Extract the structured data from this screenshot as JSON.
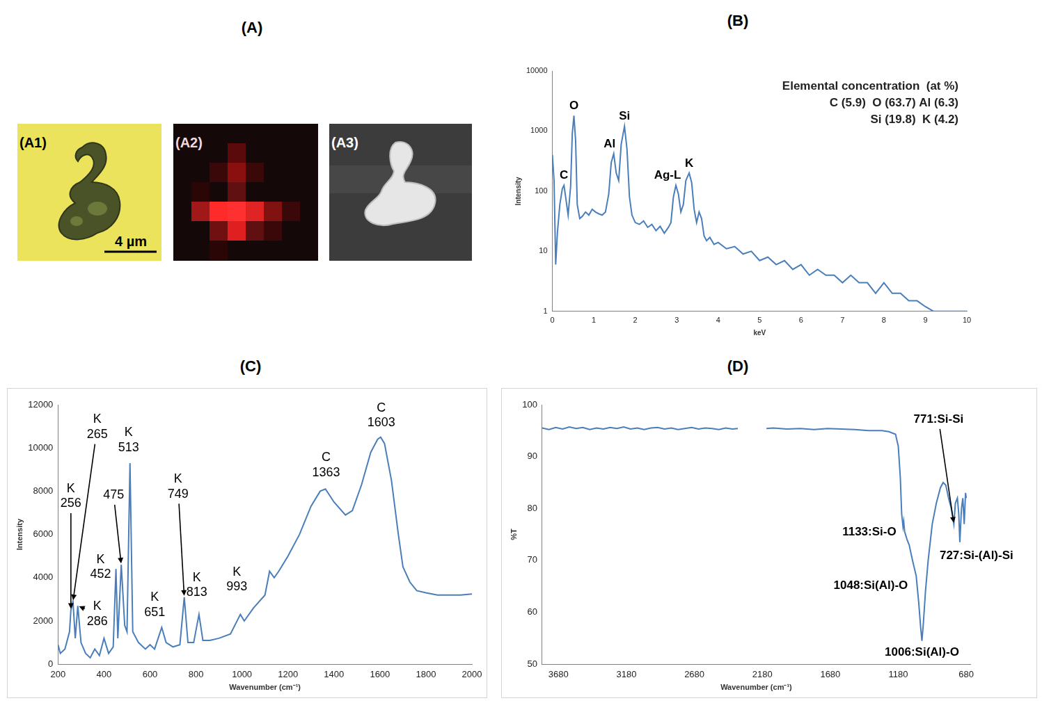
{
  "images": {
    "panel": "(A)",
    "items": [
      {
        "label": "(A1)",
        "scale_bar": "4 µm"
      },
      {
        "label": "(A2)"
      },
      {
        "label": "(A3)"
      }
    ]
  },
  "chart_data": [
    {
      "panel": "(B)",
      "type": "line",
      "x_label": "keV",
      "y_label": "Intensity",
      "log": "y",
      "grid": false,
      "color": "#4a7ebb",
      "xlim": [
        0,
        10
      ],
      "xticks": [
        0,
        1,
        2,
        3,
        4,
        5,
        6,
        7,
        8,
        9,
        10
      ],
      "ylim": [
        1,
        10000
      ],
      "yticks": [
        1,
        10,
        100,
        1000,
        10000
      ],
      "x": [
        0,
        0.04,
        0.08,
        0.12,
        0.18,
        0.24,
        0.28,
        0.32,
        0.38,
        0.44,
        0.48,
        0.52,
        0.56,
        0.6,
        0.66,
        0.72,
        0.8,
        0.88,
        0.96,
        1.04,
        1.12,
        1.2,
        1.28,
        1.36,
        1.42,
        1.48,
        1.54,
        1.6,
        1.66,
        1.74,
        1.8,
        1.86,
        1.92,
        2.0,
        2.1,
        2.2,
        2.3,
        2.4,
        2.5,
        2.6,
        2.7,
        2.8,
        2.86,
        2.92,
        2.98,
        3.04,
        3.1,
        3.16,
        3.22,
        3.3,
        3.36,
        3.42,
        3.48,
        3.54,
        3.6,
        3.66,
        3.72,
        3.8,
        3.9,
        4.0,
        4.2,
        4.4,
        4.6,
        4.8,
        5.0,
        5.2,
        5.4,
        5.6,
        5.8,
        6.0,
        6.2,
        6.4,
        6.6,
        6.8,
        7.0,
        7.2,
        7.4,
        7.6,
        7.8,
        8.0,
        8.2,
        8.4,
        8.6,
        8.8,
        9.0,
        9.2,
        9.4,
        9.6,
        9.8,
        10.0
      ],
      "values": [
        400,
        150,
        6,
        20,
        60,
        110,
        125,
        80,
        40,
        120,
        900,
        1800,
        700,
        60,
        35,
        38,
        45,
        40,
        50,
        45,
        42,
        40,
        45,
        90,
        300,
        420,
        200,
        150,
        600,
        1200,
        500,
        80,
        40,
        30,
        28,
        32,
        25,
        28,
        22,
        26,
        20,
        25,
        30,
        80,
        125,
        90,
        45,
        60,
        150,
        200,
        140,
        50,
        30,
        45,
        35,
        18,
        15,
        17,
        13,
        14,
        11,
        12,
        9,
        10,
        7,
        8,
        6,
        7,
        5,
        6,
        4,
        5,
        4,
        4,
        3,
        4,
        3,
        3,
        2,
        3,
        2,
        2,
        1.5,
        1.5,
        1.2,
        1,
        1,
        1,
        1,
        1
      ],
      "annotations": [
        {
          "text": "C",
          "x": 0.28
        },
        {
          "text": "O",
          "x": 0.52
        },
        {
          "text": "Al",
          "x": 1.48
        },
        {
          "text": "Si",
          "x": 1.74
        },
        {
          "text": "Ag-L",
          "x": 2.98
        },
        {
          "text": "K",
          "x": 3.3
        }
      ],
      "text_box": [
        "Elemental concentration  (at %)",
        "C (5.9)  O (63.7) Al (6.3)",
        "Si (19.8)  K (4.2)"
      ]
    },
    {
      "panel": "(C)",
      "type": "line",
      "x_label": "Wavenumber (cm⁻¹)",
      "y_label": "Intensity",
      "grid": false,
      "color": "#4a7ebb",
      "xlim": [
        200,
        2000
      ],
      "xticks": [
        200,
        400,
        600,
        800,
        1000,
        1200,
        1400,
        1600,
        1800,
        2000
      ],
      "ylim": [
        0,
        12000
      ],
      "yticks": [
        0,
        2000,
        4000,
        6000,
        8000,
        10000,
        12000
      ],
      "x": [
        200,
        210,
        230,
        250,
        256,
        265,
        275,
        286,
        300,
        320,
        340,
        360,
        380,
        400,
        420,
        440,
        452,
        460,
        475,
        490,
        500,
        513,
        525,
        550,
        580,
        600,
        620,
        651,
        670,
        700,
        730,
        749,
        765,
        790,
        813,
        830,
        860,
        900,
        950,
        993,
        1010,
        1050,
        1100,
        1120,
        1140,
        1160,
        1200,
        1250,
        1300,
        1340,
        1363,
        1400,
        1450,
        1480,
        1520,
        1560,
        1590,
        1603,
        1620,
        1650,
        1680,
        1700,
        1730,
        1760,
        1800,
        1850,
        1900,
        1950,
        2000
      ],
      "values": [
        900,
        500,
        700,
        1500,
        2500,
        2900,
        1200,
        2700,
        1000,
        500,
        300,
        700,
        400,
        1200,
        500,
        800,
        4400,
        1200,
        4600,
        1800,
        1500,
        9300,
        1500,
        1000,
        700,
        900,
        700,
        1700,
        1000,
        800,
        900,
        3100,
        1000,
        1000,
        2300,
        1100,
        1100,
        1200,
        1400,
        2300,
        2000,
        2600,
        3200,
        4300,
        4000,
        4300,
        5000,
        6000,
        7300,
        8000,
        8100,
        7500,
        6900,
        7100,
        8300,
        9800,
        10400,
        10500,
        10200,
        8500,
        6000,
        4500,
        3800,
        3400,
        3300,
        3200,
        3200,
        3200,
        3250
      ],
      "annotations": [
        {
          "text": [
            "K",
            "265"
          ],
          "x": 265
        },
        {
          "text": [
            "K",
            "256"
          ],
          "x": 256
        },
        {
          "text": [
            "K",
            "286"
          ],
          "x": 286
        },
        {
          "text": [
            "475"
          ],
          "x": 475
        },
        {
          "text": [
            "K",
            "452"
          ],
          "x": 452
        },
        {
          "text": [
            "K",
            "513"
          ],
          "x": 513
        },
        {
          "text": [
            "K",
            "651"
          ],
          "x": 651
        },
        {
          "text": [
            "K",
            "749"
          ],
          "x": 749
        },
        {
          "text": [
            "K",
            "813"
          ],
          "x": 813
        },
        {
          "text": [
            "K",
            "993"
          ],
          "x": 993
        },
        {
          "text": [
            "C",
            "1363"
          ],
          "x": 1363
        },
        {
          "text": [
            "C",
            "1603"
          ],
          "x": 1603
        }
      ]
    },
    {
      "panel": "(D)",
      "type": "line",
      "x_label": "Wavenumber (cm⁻¹)",
      "y_label": "%T",
      "grid": false,
      "color": "#4a7ebb",
      "xlim": [
        3800,
        650
      ],
      "xticks": [
        3680,
        3180,
        2680,
        2180,
        1680,
        1180,
        680
      ],
      "ylim": [
        50,
        100
      ],
      "yticks": [
        50,
        60,
        70,
        80,
        90,
        100
      ],
      "x": [
        3800,
        3750,
        3700,
        3650,
        3600,
        3550,
        3500,
        3450,
        3400,
        3350,
        3300,
        3250,
        3200,
        3150,
        3100,
        3050,
        3000,
        2950,
        2900,
        2850,
        2800,
        2750,
        2700,
        2650,
        2600,
        2550,
        2500,
        2450,
        2400,
        2360,
        2250,
        2150,
        2100,
        2000,
        1900,
        1800,
        1700,
        1600,
        1500,
        1400,
        1300,
        1250,
        1200,
        1180,
        1165,
        1155,
        1145,
        1140,
        1133,
        1115,
        1100,
        1075,
        1048,
        1030,
        1015,
        1006,
        995,
        980,
        960,
        930,
        900,
        870,
        850,
        830,
        810,
        790,
        771,
        760,
        745,
        735,
        727,
        715,
        705,
        695,
        685,
        680
      ],
      "values": [
        95.5,
        95.2,
        95.6,
        95.3,
        95.7,
        95.4,
        95.6,
        95.2,
        95.5,
        95.3,
        95.6,
        95.4,
        95.7,
        95.3,
        95.5,
        95.2,
        95.5,
        95.6,
        95.3,
        95.5,
        95.2,
        95.4,
        95.6,
        95.3,
        95.5,
        95.4,
        95.2,
        95.5,
        95.3,
        95.4,
        null,
        95.4,
        95.5,
        95.3,
        95.4,
        95.2,
        95.4,
        95.3,
        95.2,
        95.0,
        95.0,
        94.8,
        94.3,
        92,
        86,
        79,
        76.5,
        77.5,
        75.5,
        74,
        73,
        70,
        67,
        62,
        57,
        54.5,
        58,
        64,
        70,
        77,
        81,
        84,
        85,
        84.5,
        82,
        80,
        77,
        81,
        82,
        79,
        73.5,
        80,
        82,
        77,
        83,
        82
      ],
      "annotations": [
        {
          "text": "771:Si-Si",
          "x": 771
        },
        {
          "text": "1133:Si-O",
          "x": 1133
        },
        {
          "text": "1048:Si(Al)-O",
          "x": 1048
        },
        {
          "text": "1006:Si(Al)-O",
          "x": 1006
        },
        {
          "text": "727:Si-(Al)-Si",
          "x": 727
        }
      ]
    }
  ]
}
